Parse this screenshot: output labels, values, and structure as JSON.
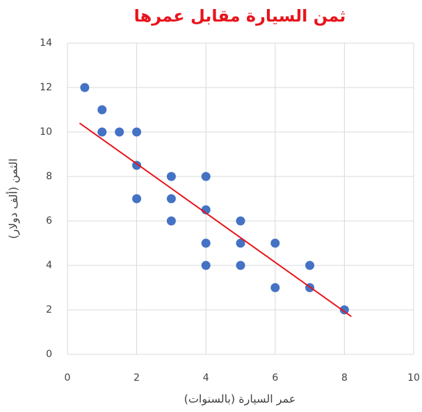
{
  "chart_data": {
    "type": "scatter",
    "title": "ثمن السيارة مقابل عمرها",
    "x_label": "عمر السيارة (بالسنوات)",
    "y_label": "الثمن (ألف دولار)",
    "series": [
      {
        "color": "#4472c4",
        "x": [
          0.5,
          1,
          1,
          1.5,
          2,
          2,
          2,
          3,
          3,
          3,
          4,
          4,
          4,
          4,
          5,
          5,
          5,
          6,
          6,
          7,
          7,
          8
        ],
        "values": [
          12,
          11,
          10,
          10,
          10,
          8.5,
          7,
          8,
          7,
          6,
          8,
          6.5,
          5,
          4,
          6,
          5,
          4,
          5,
          3,
          4,
          3,
          2
        ]
      }
    ],
    "trendline": {
      "color": "#e8141c",
      "x": [
        0.35,
        8.2
      ],
      "values": [
        10.4,
        1.7
      ]
    },
    "xlim": [
      0,
      10
    ],
    "ylim": [
      0,
      14
    ],
    "xticks": [
      0,
      2,
      4,
      6,
      8,
      10
    ],
    "yticks": [
      0,
      2,
      4,
      6,
      8,
      10,
      12,
      14
    ],
    "grid": true
  }
}
